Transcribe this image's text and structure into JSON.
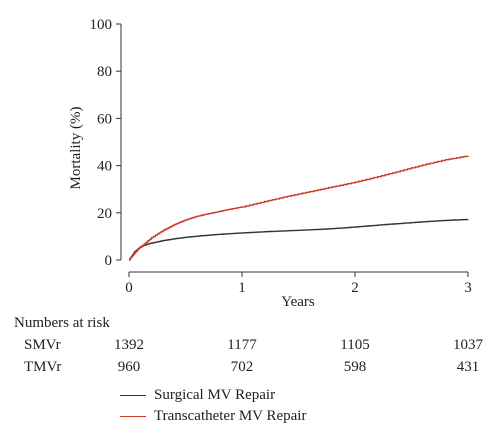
{
  "chart_data": {
    "type": "line",
    "ylabel": "Mortality (%)",
    "xlabel": "Years",
    "xlim": [
      0,
      3
    ],
    "ylim": [
      0,
      100
    ],
    "x_ticks": [
      0,
      1,
      2,
      3
    ],
    "y_ticks": [
      0,
      20,
      40,
      60,
      80,
      100
    ],
    "grid": false,
    "legend_position": "bottom",
    "series": [
      {
        "name": "Surgical MV Repair",
        "color": "#333333",
        "x": [
          0,
          0.05,
          0.1,
          0.15,
          0.2,
          0.3,
          0.4,
          0.5,
          0.6,
          0.7,
          0.8,
          1.0,
          1.2,
          1.4,
          1.6,
          1.8,
          2.0,
          2.2,
          2.4,
          2.6,
          2.8,
          3.0
        ],
        "y": [
          0,
          3.5,
          5.5,
          6.5,
          7.2,
          8.2,
          9.0,
          9.6,
          10.1,
          10.5,
          10.9,
          11.5,
          12.0,
          12.4,
          12.8,
          13.3,
          14.0,
          14.8,
          15.5,
          16.2,
          16.8,
          17.2
        ]
      },
      {
        "name": "Transcatheter MV Repair",
        "color": "#cc3a2a",
        "x": [
          0,
          0.05,
          0.1,
          0.2,
          0.3,
          0.4,
          0.5,
          0.6,
          0.7,
          0.8,
          0.9,
          1.0,
          1.2,
          1.4,
          1.6,
          1.8,
          2.0,
          2.2,
          2.4,
          2.6,
          2.8,
          3.0
        ],
        "y": [
          0,
          3.0,
          5.5,
          9.5,
          12.5,
          15.0,
          17.0,
          18.5,
          19.6,
          20.6,
          21.6,
          22.5,
          24.8,
          27.0,
          29.0,
          31.0,
          33.0,
          35.3,
          37.8,
          40.3,
          42.5,
          44.2
        ]
      }
    ]
  },
  "risk_table": {
    "title": "Numbers at risk",
    "rows": [
      {
        "label": "SMVr",
        "values": [
          "1392",
          "1177",
          "1105",
          "1037"
        ]
      },
      {
        "label": "TMVr",
        "values": [
          "960",
          "702",
          "598",
          "431"
        ]
      }
    ]
  },
  "legend": [
    {
      "label": "Surgical MV Repair",
      "color": "#333333"
    },
    {
      "label": "Transcatheter MV Repair",
      "color": "#cc3a2a"
    }
  ]
}
